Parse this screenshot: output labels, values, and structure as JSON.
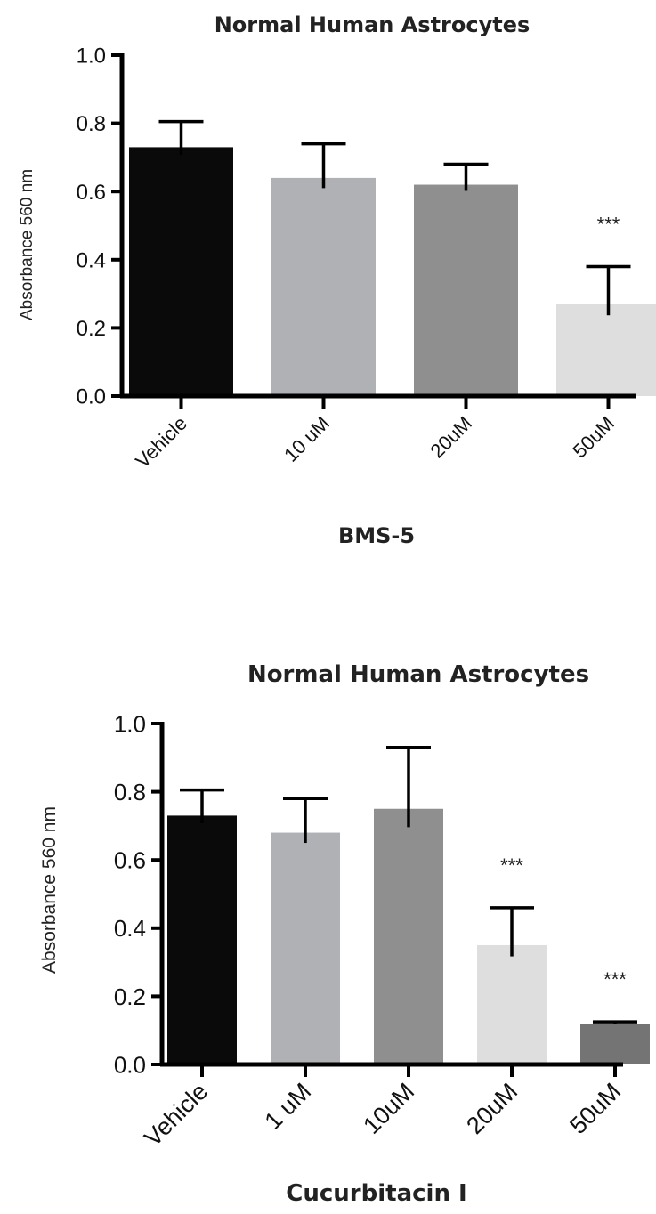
{
  "chart_data": [
    {
      "type": "bar",
      "title": "Normal Human Astrocytes",
      "xlabel": "BMS-5",
      "ylabel": "Absorbance 560 nm",
      "ylim": [
        0,
        1.0
      ],
      "yticks": [
        "0.0",
        "0.2",
        "0.4",
        "0.6",
        "0.8",
        "1.0"
      ],
      "categories": [
        "Vehicle",
        "10 uM",
        "20uM",
        "50uM"
      ],
      "values": [
        0.73,
        0.64,
        0.62,
        0.27
      ],
      "error": [
        0.075,
        0.1,
        0.06,
        0.11
      ],
      "significance": [
        "",
        "",
        "",
        "***"
      ],
      "colors": [
        "#0a0a0a",
        "#b0b1b4",
        "#8f8f8f",
        "#dedede"
      ],
      "grid": false
    },
    {
      "type": "bar",
      "title": "Normal Human Astrocytes",
      "xlabel": "Cucurbitacin I",
      "ylabel": "Absorbance 560 nm",
      "ylim": [
        0,
        1.0
      ],
      "yticks": [
        "0.0",
        "0.2",
        "0.4",
        "0.6",
        "0.8",
        "1.0"
      ],
      "categories": [
        "Vehicle",
        "1 uM",
        "10uM",
        "20uM",
        "50uM"
      ],
      "values": [
        0.73,
        0.68,
        0.75,
        0.35,
        0.12
      ],
      "error": [
        0.075,
        0.1,
        0.18,
        0.11,
        0.005
      ],
      "significance": [
        "",
        "",
        "",
        "***",
        "***"
      ],
      "colors": [
        "#0a0a0a",
        "#b0b1b4",
        "#8f8f8f",
        "#dedede",
        "#747474"
      ],
      "grid": false
    }
  ]
}
